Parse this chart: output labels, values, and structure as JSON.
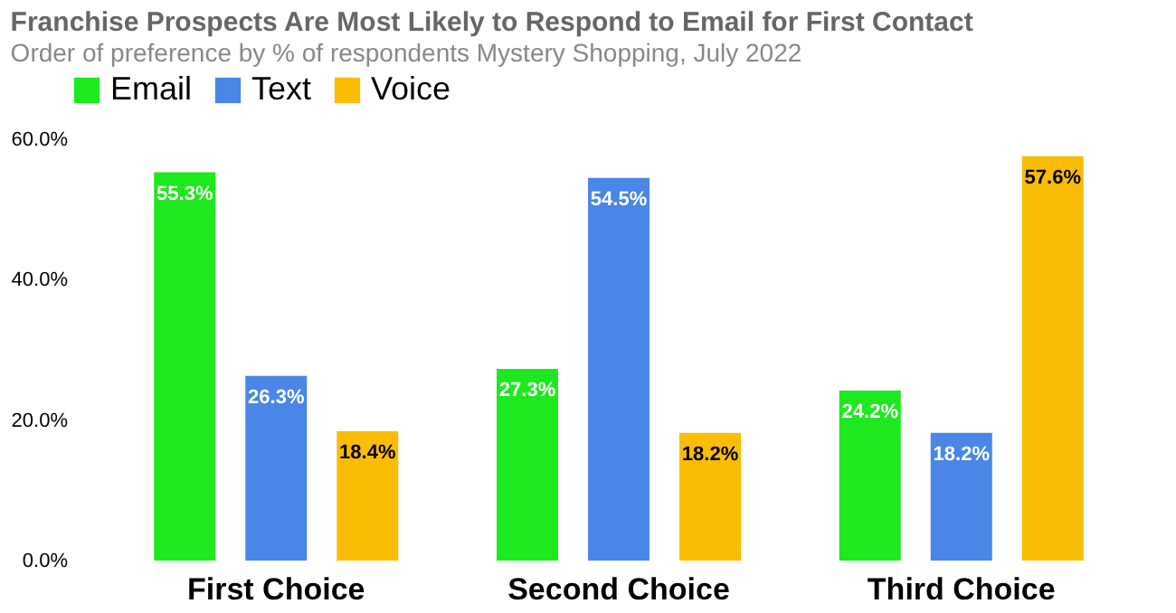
{
  "chart_data": {
    "type": "bar",
    "title": "Franchise Prospects Are Most Likely to Respond to Email for First Contact",
    "subtitle": "Order of preference by % of respondents",
    "annotations": [
      "Mystery Shopping, July 2022"
    ],
    "categories": [
      "First Choice",
      "Second Choice",
      "Third Choice"
    ],
    "series": [
      {
        "name": "Email",
        "color": "#1ee81e",
        "values": [
          55.3,
          27.3,
          24.2
        ],
        "value_labels": [
          "55.3%",
          "27.3%",
          "24.2%"
        ]
      },
      {
        "name": "Text",
        "color": "#4a86e8",
        "values": [
          26.3,
          54.5,
          18.2
        ],
        "value_labels": [
          "26.3%",
          "54.5%",
          "18.2%"
        ]
      },
      {
        "name": "Voice",
        "color": "#fbbc04",
        "values": [
          18.4,
          18.2,
          57.6
        ],
        "value_labels": [
          "18.4%",
          "18.2%",
          "57.6%"
        ]
      }
    ],
    "ylim": [
      0,
      60
    ],
    "yticks": [
      {
        "value": 0,
        "label": "0.0%"
      },
      {
        "value": 20,
        "label": "20.0%"
      },
      {
        "value": 40,
        "label": "40.0%"
      },
      {
        "value": 60,
        "label": "60.0%"
      }
    ],
    "grid": false,
    "legend": "top"
  }
}
